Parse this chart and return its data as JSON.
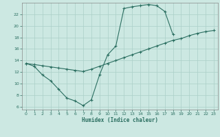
{
  "xlabel": "Humidex (Indice chaleur)",
  "line1_x": [
    0,
    1,
    2,
    3,
    4,
    5,
    6,
    7,
    8,
    9,
    10,
    11,
    12,
    13,
    14,
    15,
    16,
    17,
    18
  ],
  "line1_y": [
    13.5,
    13.0,
    11.5,
    10.5,
    9.0,
    7.5,
    7.0,
    6.2,
    7.2,
    11.5,
    15.0,
    16.5,
    23.0,
    23.3,
    23.5,
    23.7,
    23.5,
    22.5,
    18.5
  ],
  "line2_x": [
    0,
    1,
    2,
    3,
    4,
    5,
    6,
    7,
    8,
    9,
    10,
    11,
    12,
    13,
    14,
    15,
    16,
    17,
    18,
    19,
    20,
    21,
    22,
    23
  ],
  "line2_y": [
    13.5,
    13.3,
    13.1,
    12.9,
    12.7,
    12.5,
    12.3,
    12.1,
    12.5,
    13.0,
    13.5,
    14.0,
    14.5,
    15.0,
    15.5,
    16.0,
    16.5,
    17.0,
    17.5,
    17.8,
    18.3,
    18.7,
    19.0,
    19.2
  ],
  "ylim": [
    5.5,
    24.0
  ],
  "xlim": [
    -0.5,
    23.5
  ],
  "yticks": [
    6,
    8,
    10,
    12,
    14,
    16,
    18,
    20,
    22
  ],
  "xticks": [
    0,
    1,
    2,
    3,
    4,
    5,
    6,
    7,
    8,
    9,
    10,
    11,
    12,
    13,
    14,
    15,
    16,
    17,
    18,
    19,
    20,
    21,
    22,
    23
  ],
  "bg_color": "#cce8e2",
  "line_color": "#2a6e60",
  "grid_color": "#aacfc8"
}
